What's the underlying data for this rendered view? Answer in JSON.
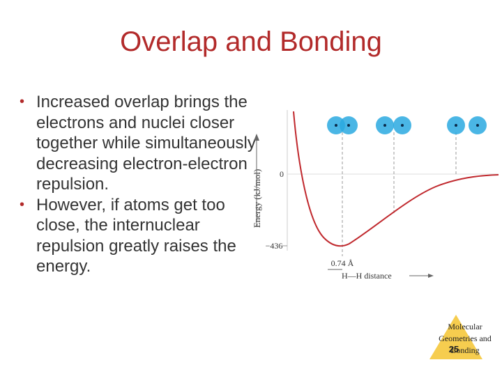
{
  "slide": {
    "title": "Overlap and Bonding",
    "bullets": [
      "Increased overlap brings the electrons and nuclei closer together while simultaneously decreasing electron-electron repulsion.",
      "However, if atoms get too close, the internuclear repulsion greatly raises the energy."
    ]
  },
  "diagram": {
    "y_axis_label": "Energy (kJ/mol)",
    "zero_label": "0",
    "min_label": "−436",
    "bond_length_label": "0.74 Å",
    "x_axis_label": "H—H distance",
    "curve_color": "#c0282d",
    "atom_color": "#2aa9e0"
  },
  "footer": {
    "topic": "Molecular Geometries and Bonding",
    "page_number": "25"
  }
}
